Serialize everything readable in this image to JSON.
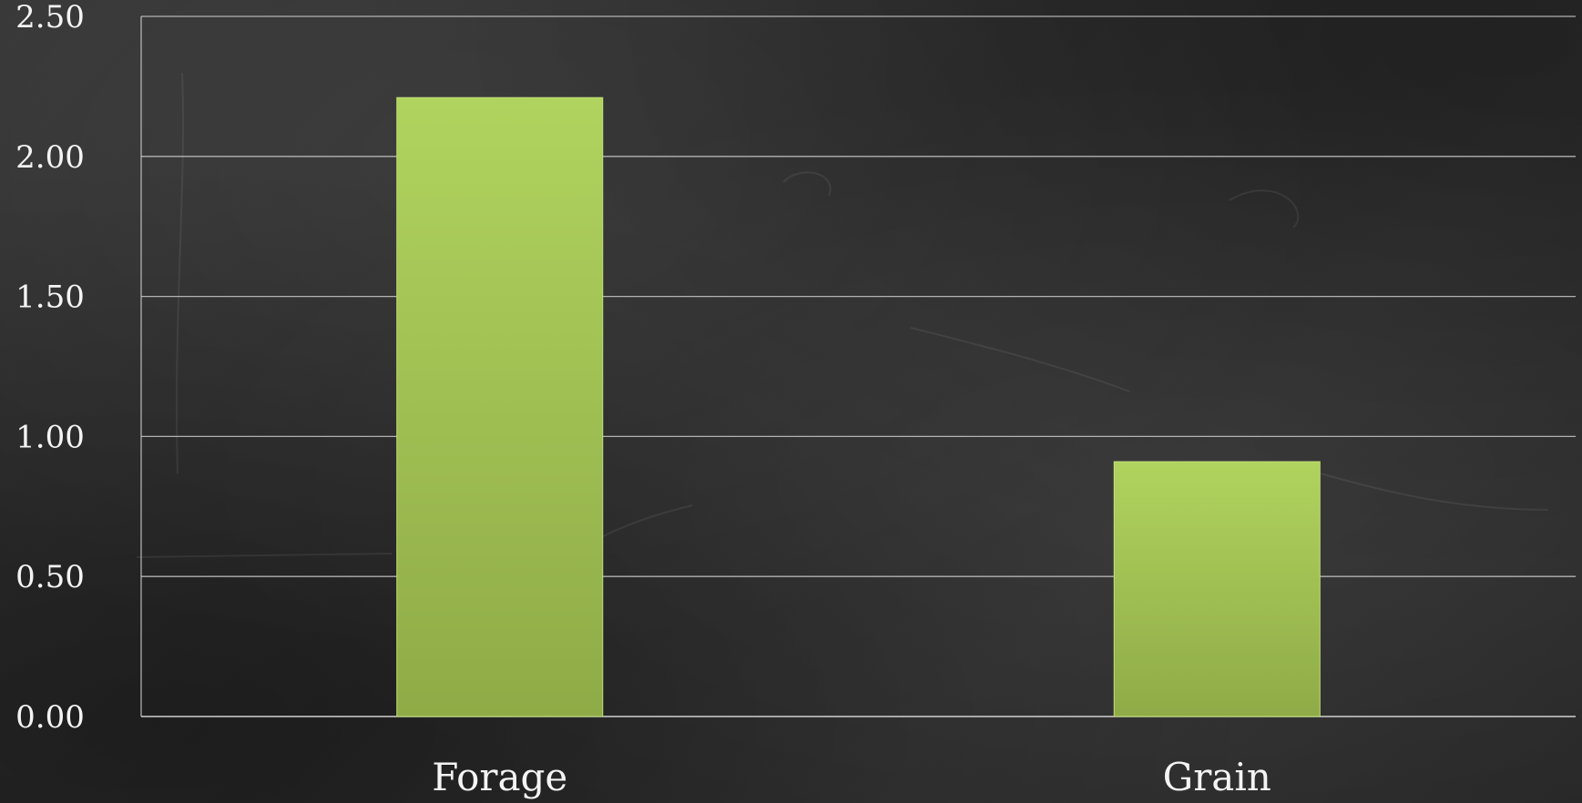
{
  "chart_data": {
    "type": "bar",
    "categories": [
      "Forage",
      "Grain"
    ],
    "series": [
      {
        "values": [
          2.21,
          0.91
        ],
        "color": "#a4c659"
      }
    ],
    "yticks": [
      "0.00",
      "0.50",
      "1.00",
      "1.50",
      "2.00",
      "2.50"
    ],
    "ylim": [
      0,
      2.5
    ],
    "grid": true,
    "legend": "none",
    "colors": {
      "background": "#2e2e2e",
      "bar_top": "#b0d35e",
      "bar_bottom": "#8fab47",
      "text": "#f4f4f4"
    }
  }
}
